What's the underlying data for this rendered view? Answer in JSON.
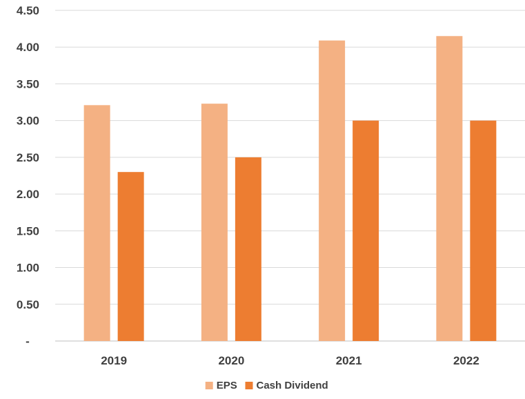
{
  "chart_data": {
    "type": "bar",
    "categories": [
      "2019",
      "2020",
      "2021",
      "2022"
    ],
    "series": [
      {
        "name": "EPS",
        "values": [
          3.21,
          3.23,
          4.09,
          4.15
        ],
        "color": "#F4B183"
      },
      {
        "name": "Cash Dividend",
        "values": [
          2.3,
          2.5,
          3.0,
          3.0
        ],
        "color": "#ED7D31"
      }
    ],
    "yticks": [
      "-",
      "0.50",
      "1.00",
      "1.50",
      "2.00",
      "2.50",
      "3.00",
      "3.50",
      "4.00",
      "4.50"
    ],
    "ylim": [
      0,
      4.5
    ],
    "grid": true,
    "legend": "bottom-center",
    "title": "",
    "xlabel": "",
    "ylabel": ""
  }
}
